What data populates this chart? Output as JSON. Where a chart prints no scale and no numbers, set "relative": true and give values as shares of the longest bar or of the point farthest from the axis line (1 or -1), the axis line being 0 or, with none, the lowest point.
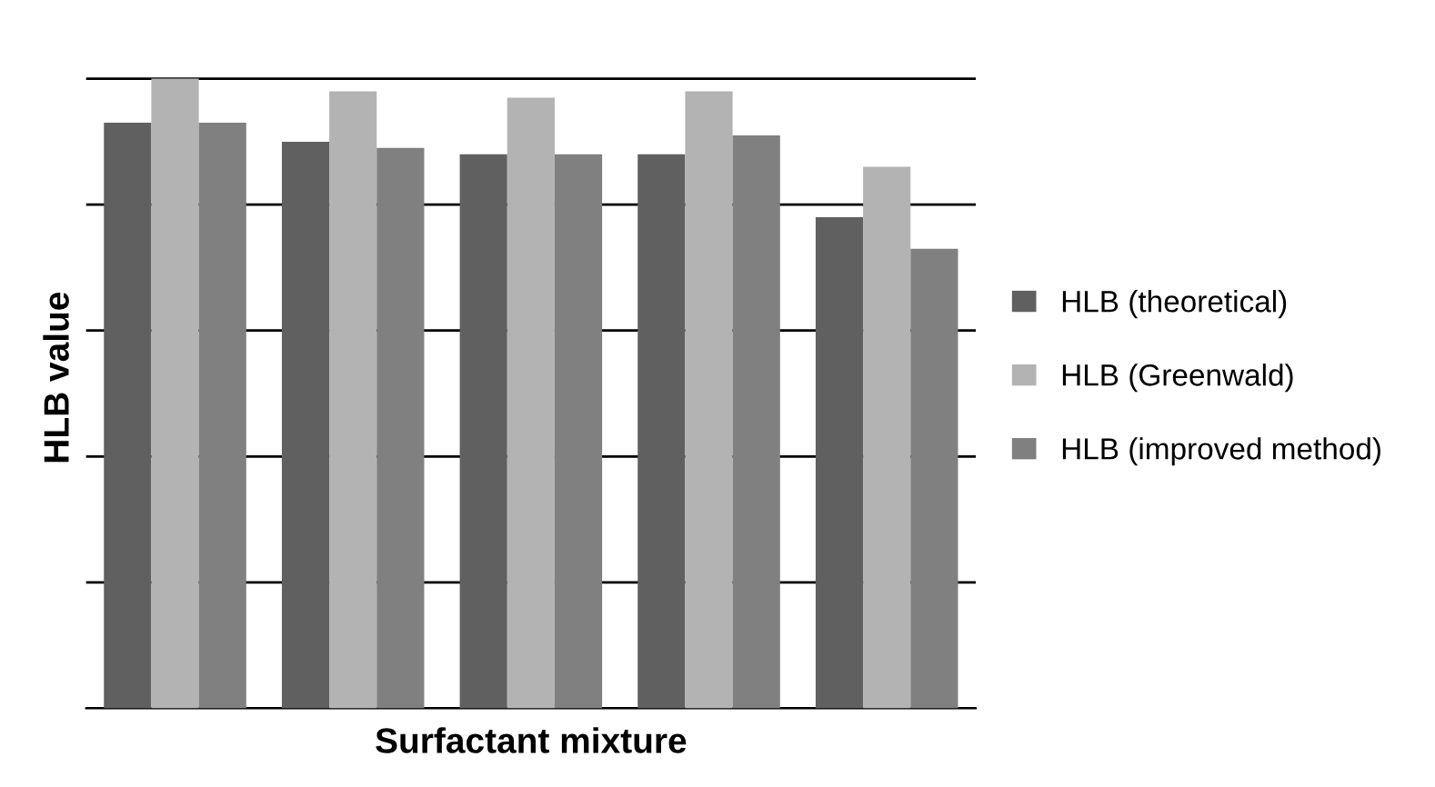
{
  "chart_data": {
    "type": "bar",
    "xlabel": "Surfactant mixture",
    "ylabel": "HLB value",
    "categories": [
      null,
      null,
      null,
      null,
      null
    ],
    "relative": true,
    "grid": "y",
    "legend": "right",
    "series": [
      {
        "name": "HLB (theoretical)",
        "color": "#606060",
        "values": [
          0.93,
          0.9,
          0.88,
          0.88,
          0.78
        ]
      },
      {
        "name": "HLB (Greenwald)",
        "color": "#b3b3b3",
        "values": [
          1,
          0.98,
          0.97,
          0.98,
          0.86
        ]
      },
      {
        "name": "HLB (improved method)",
        "color": "#808080",
        "values": [
          0.93,
          0.89,
          0.88,
          0.91,
          0.73
        ]
      }
    ]
  }
}
